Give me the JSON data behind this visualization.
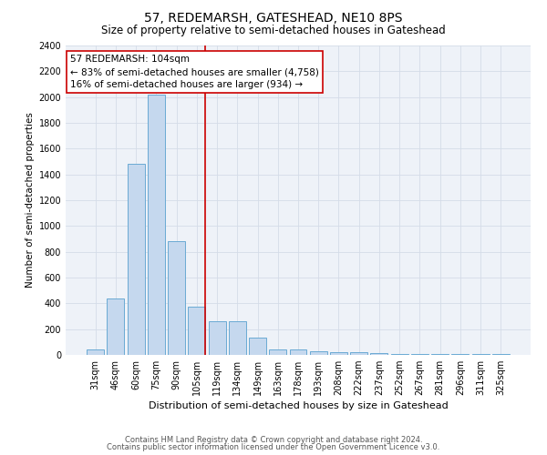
{
  "title": "57, REDEMARSH, GATESHEAD, NE10 8PS",
  "subtitle": "Size of property relative to semi-detached houses in Gateshead",
  "xlabel": "Distribution of semi-detached houses by size in Gateshead",
  "ylabel": "Number of semi-detached properties",
  "categories": [
    "31sqm",
    "46sqm",
    "60sqm",
    "75sqm",
    "90sqm",
    "105sqm",
    "119sqm",
    "134sqm",
    "149sqm",
    "163sqm",
    "178sqm",
    "193sqm",
    "208sqm",
    "222sqm",
    "237sqm",
    "252sqm",
    "267sqm",
    "281sqm",
    "296sqm",
    "311sqm",
    "325sqm"
  ],
  "values": [
    45,
    440,
    1480,
    2020,
    880,
    375,
    260,
    260,
    135,
    40,
    40,
    30,
    20,
    20,
    15,
    10,
    10,
    10,
    10,
    10,
    10
  ],
  "bar_color": "#c5d8ee",
  "bar_edge_color": "#6aaad4",
  "highlight_index": 5,
  "vline_color": "#cc0000",
  "ylim": [
    0,
    2400
  ],
  "yticks": [
    0,
    200,
    400,
    600,
    800,
    1000,
    1200,
    1400,
    1600,
    1800,
    2000,
    2200,
    2400
  ],
  "annotation_line1": "57 REDEMARSH: 104sqm",
  "annotation_line2": "← 83% of semi-detached houses are smaller (4,758)",
  "annotation_line3": "16% of semi-detached houses are larger (934) →",
  "annotation_box_color": "#ffffff",
  "annotation_box_edge": "#cc0000",
  "grid_color": "#d4dce8",
  "bg_color": "#eef2f8",
  "footer1": "Contains HM Land Registry data © Crown copyright and database right 2024.",
  "footer2": "Contains public sector information licensed under the Open Government Licence v3.0.",
  "title_fontsize": 10,
  "subtitle_fontsize": 8.5,
  "xlabel_fontsize": 8,
  "ylabel_fontsize": 7.5,
  "tick_fontsize": 7,
  "annotation_fontsize": 7.5,
  "footer_fontsize": 6
}
